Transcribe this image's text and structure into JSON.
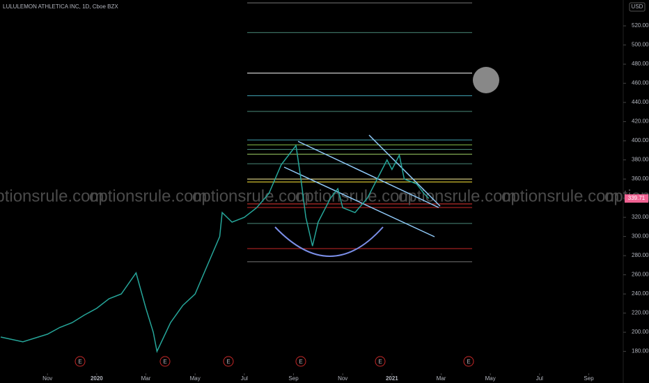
{
  "chart_data": {
    "type": "line",
    "title": "LULULEMON ATHLETICA INC, 1D, Cboe BZX",
    "currency": "USD",
    "watermark": "optionsrule.com",
    "earnings_marker": "E",
    "last_price": 339.71,
    "x": [
      -1.9,
      -1,
      0,
      0.5,
      1,
      1.5,
      2,
      2.5,
      3,
      3.6,
      4,
      4.3,
      4.45,
      5,
      5.5,
      6,
      6.5,
      7,
      7.1,
      7.5,
      8,
      8.5,
      9,
      9.5,
      10.1,
      10.3,
      10.5,
      10.77,
      11,
      11.5,
      11.8,
      12,
      12.5,
      13,
      13.5,
      13.8,
      14,
      14.3,
      14.5,
      15,
      15.3,
      15.5
    ],
    "series": [
      {
        "name": "LULU",
        "color": "#26a69a",
        "values": [
          195,
          190,
          198,
          205,
          210,
          218,
          225,
          235,
          240,
          262,
          225,
          200,
          180,
          210,
          228,
          240,
          270,
          300,
          325,
          315,
          320,
          330,
          345,
          375,
          395,
          360,
          320,
          290,
          315,
          340,
          350,
          330,
          325,
          340,
          365,
          380,
          370,
          385,
          360,
          355,
          345,
          339.71
        ]
      }
    ],
    "levels": [
      544,
      513,
      470.6,
      447,
      430.6,
      400.8,
      395.7,
      391,
      386,
      376,
      360,
      357,
      334,
      330.3,
      313.6,
      287.4,
      273.6
    ],
    "xlim": [
      -1.93,
      23.4
    ],
    "ylim": [
      147,
      547
    ],
    "xticks": [
      {
        "value": 0,
        "label": "Nov"
      },
      {
        "value": 2,
        "label": "2020"
      },
      {
        "value": 4,
        "label": "Mar"
      },
      {
        "value": 6,
        "label": "May"
      },
      {
        "value": 8,
        "label": "Jul"
      },
      {
        "value": 10,
        "label": "Sep"
      },
      {
        "value": 12,
        "label": "Nov"
      },
      {
        "value": 14,
        "label": "2021"
      },
      {
        "value": 16,
        "label": "Mar"
      },
      {
        "value": 18,
        "label": "May"
      },
      {
        "value": 20,
        "label": "Jul"
      },
      {
        "value": 22,
        "label": "Sep"
      }
    ],
    "yticks": [
      {
        "value": 180,
        "label": "180.00"
      },
      {
        "value": 200,
        "label": "200.00"
      },
      {
        "value": 220,
        "label": "220.00"
      },
      {
        "value": 240,
        "label": "240.00"
      },
      {
        "value": 260,
        "label": "260.00"
      },
      {
        "value": 280,
        "label": "280.00"
      },
      {
        "value": 300,
        "label": "300.00"
      },
      {
        "value": 320,
        "label": "320.00"
      },
      {
        "value": 340,
        "label": "340.00"
      },
      {
        "value": 360,
        "label": "360.00"
      },
      {
        "value": 380,
        "label": "380.00"
      },
      {
        "value": 400,
        "label": "400.00"
      },
      {
        "value": 420,
        "label": "420.00"
      },
      {
        "value": 440,
        "label": "440.00"
      },
      {
        "value": 460,
        "label": "460.00"
      },
      {
        "value": 480,
        "label": "480.00"
      },
      {
        "value": 500,
        "label": "500.00"
      },
      {
        "value": 520,
        "label": "520.00"
      }
    ]
  }
}
